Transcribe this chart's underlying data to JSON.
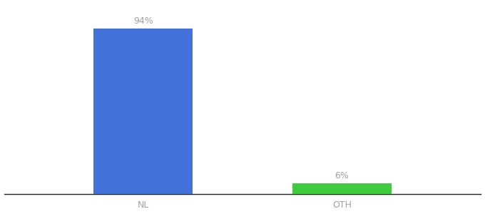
{
  "categories": [
    "NL",
    "OTH"
  ],
  "values": [
    94,
    6
  ],
  "bar_colors": [
    "#4472db",
    "#3ecc3e"
  ],
  "label_texts": [
    "94%",
    "6%"
  ],
  "background_color": "#ffffff",
  "text_color": "#a0a0a0",
  "label_fontsize": 9,
  "tick_fontsize": 9,
  "ylim": [
    0,
    108
  ],
  "bar_width": 0.5,
  "x_positions": [
    1,
    2
  ],
  "xlim": [
    0.3,
    2.7
  ]
}
